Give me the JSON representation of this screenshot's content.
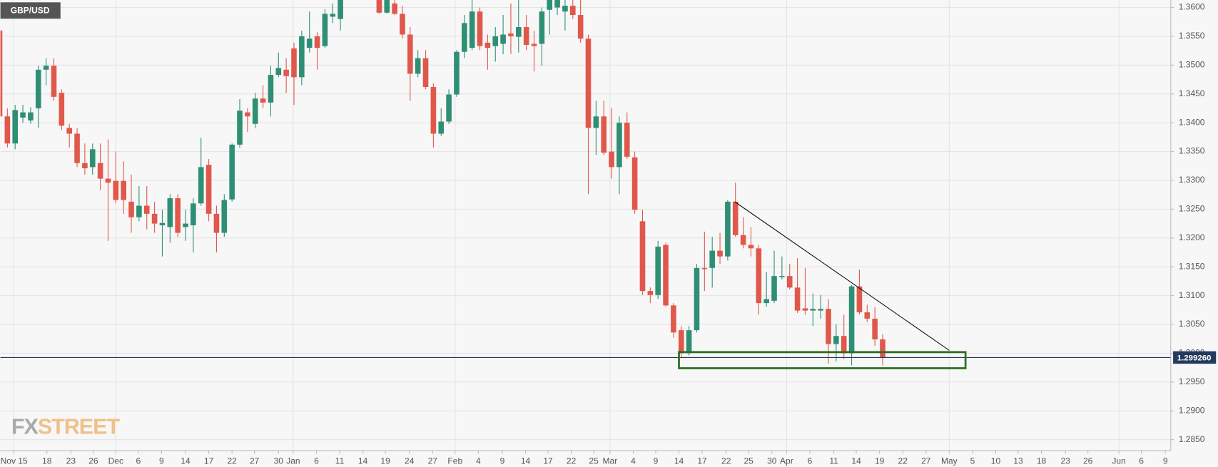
{
  "chart_data": {
    "type": "candlestick",
    "symbol": "GBP/USD",
    "up_color": "#2f8f74",
    "down_color": "#e0584b",
    "grid": true,
    "xlim": [
      0.1,
      151.2
    ],
    "ylim": [
      1.2831,
      1.3613
    ],
    "xticks": [
      {
        "value": 1.8,
        "label": "Nov 15"
      },
      {
        "value": 6.1,
        "label": "18"
      },
      {
        "value": 9.2,
        "label": "23"
      },
      {
        "value": 12.1,
        "label": "26"
      },
      {
        "value": 15.0,
        "label": "Dec"
      },
      {
        "value": 17.9,
        "label": "6"
      },
      {
        "value": 20.9,
        "label": "9"
      },
      {
        "value": 24.0,
        "label": "14"
      },
      {
        "value": 27.0,
        "label": "17"
      },
      {
        "value": 30.0,
        "label": "22"
      },
      {
        "value": 32.9,
        "label": "27"
      },
      {
        "value": 36.0,
        "label": "30"
      },
      {
        "value": 37.9,
        "label": "Jan"
      },
      {
        "value": 40.9,
        "label": "6"
      },
      {
        "value": 43.9,
        "label": "11"
      },
      {
        "value": 46.9,
        "label": "14"
      },
      {
        "value": 49.8,
        "label": "19"
      },
      {
        "value": 52.9,
        "label": "24"
      },
      {
        "value": 55.9,
        "label": "27"
      },
      {
        "value": 58.8,
        "label": "Feb"
      },
      {
        "value": 61.8,
        "label": "4"
      },
      {
        "value": 64.9,
        "label": "9"
      },
      {
        "value": 67.9,
        "label": "14"
      },
      {
        "value": 70.8,
        "label": "17"
      },
      {
        "value": 73.8,
        "label": "22"
      },
      {
        "value": 76.7,
        "label": "25"
      },
      {
        "value": 78.8,
        "label": "Mar"
      },
      {
        "value": 81.8,
        "label": "4"
      },
      {
        "value": 84.7,
        "label": "9"
      },
      {
        "value": 87.7,
        "label": "14"
      },
      {
        "value": 90.7,
        "label": "17"
      },
      {
        "value": 93.8,
        "label": "22"
      },
      {
        "value": 96.7,
        "label": "25"
      },
      {
        "value": 99.7,
        "label": "30"
      },
      {
        "value": 101.6,
        "label": "Apr"
      },
      {
        "value": 104.6,
        "label": "6"
      },
      {
        "value": 107.7,
        "label": "11"
      },
      {
        "value": 110.6,
        "label": "14"
      },
      {
        "value": 113.6,
        "label": "19"
      },
      {
        "value": 116.6,
        "label": "22"
      },
      {
        "value": 119.6,
        "label": "27"
      },
      {
        "value": 122.6,
        "label": "May"
      },
      {
        "value": 125.6,
        "label": "5"
      },
      {
        "value": 128.6,
        "label": "10"
      },
      {
        "value": 131.5,
        "label": "13"
      },
      {
        "value": 134.5,
        "label": "18"
      },
      {
        "value": 137.6,
        "label": "23"
      },
      {
        "value": 140.5,
        "label": "26"
      },
      {
        "value": 144.5,
        "label": "Jun"
      },
      {
        "value": 147.4,
        "label": "6"
      },
      {
        "value": 150.5,
        "label": "9"
      }
    ],
    "yticks": [
      {
        "value": 1.36,
        "label": "1.3600"
      },
      {
        "value": 1.355,
        "label": "1.3550"
      },
      {
        "value": 1.35,
        "label": "1.3500"
      },
      {
        "value": 1.345,
        "label": "1.3450"
      },
      {
        "value": 1.34,
        "label": "1.3400"
      },
      {
        "value": 1.335,
        "label": "1.3350"
      },
      {
        "value": 1.33,
        "label": "1.3300"
      },
      {
        "value": 1.325,
        "label": "1.3250"
      },
      {
        "value": 1.32,
        "label": "1.3200"
      },
      {
        "value": 1.315,
        "label": "1.3150"
      },
      {
        "value": 1.31,
        "label": "1.3100"
      },
      {
        "value": 1.305,
        "label": "1.3050"
      },
      {
        "value": 1.3,
        "label": "1.3000"
      },
      {
        "value": 1.295,
        "label": "1.2950"
      },
      {
        "value": 1.29,
        "label": "1.2900"
      },
      {
        "value": 1.285,
        "label": "1.2850"
      }
    ],
    "price_line": {
      "value": 1.29926,
      "label": "1.299260",
      "color": "#23395d"
    },
    "trendline": {
      "x": [
        94.9,
        122.6
      ],
      "y": [
        1.3263,
        1.3005
      ],
      "color": "#111111"
    },
    "support_zone": {
      "x": [
        87.7,
        124.7
      ],
      "y": [
        1.2974,
        1.3002
      ],
      "color": "#2b6e1f"
    },
    "ohlc": [
      [
        1.356,
        1.3566,
        1.3391,
        1.3411
      ],
      [
        1.3411,
        1.3425,
        1.3357,
        1.3364
      ],
      [
        1.3364,
        1.3431,
        1.3354,
        1.3422
      ],
      [
        1.3409,
        1.3431,
        1.34,
        1.3418
      ],
      [
        1.3404,
        1.3427,
        1.3398,
        1.3418
      ],
      [
        1.3425,
        1.3499,
        1.3391,
        1.3492
      ],
      [
        1.3492,
        1.3512,
        1.3465,
        1.3499
      ],
      [
        1.3499,
        1.3512,
        1.3438,
        1.3445
      ],
      [
        1.3452,
        1.3458,
        1.3387,
        1.3395
      ],
      [
        1.3391,
        1.3398,
        1.3357,
        1.3381
      ],
      [
        1.3381,
        1.3391,
        1.3323,
        1.333
      ],
      [
        1.333,
        1.3364,
        1.331,
        1.3321
      ],
      [
        1.3323,
        1.3364,
        1.331,
        1.3354
      ],
      [
        1.333,
        1.3364,
        1.3283,
        1.3303
      ],
      [
        1.3303,
        1.3371,
        1.3195,
        1.3296
      ],
      [
        1.3299,
        1.335,
        1.326,
        1.3266
      ],
      [
        1.3299,
        1.3333,
        1.3242,
        1.3266
      ],
      [
        1.3263,
        1.331,
        1.3209,
        1.3236
      ],
      [
        1.3236,
        1.329,
        1.3229,
        1.3256
      ],
      [
        1.3256,
        1.329,
        1.3215,
        1.3242
      ],
      [
        1.3242,
        1.3263,
        1.3209,
        1.3225
      ],
      [
        1.3222,
        1.3249,
        1.3168,
        1.3226
      ],
      [
        1.3219,
        1.3276,
        1.3192,
        1.3269
      ],
      [
        1.3269,
        1.3276,
        1.3202,
        1.3209
      ],
      [
        1.3219,
        1.3249,
        1.3195,
        1.3225
      ],
      [
        1.3222,
        1.3269,
        1.3175,
        1.326
      ],
      [
        1.326,
        1.3374,
        1.3256,
        1.3323
      ],
      [
        1.3327,
        1.3337,
        1.3229,
        1.3242
      ],
      [
        1.3242,
        1.3256,
        1.3175,
        1.3209
      ],
      [
        1.3209,
        1.3276,
        1.3202,
        1.3266
      ],
      [
        1.3267,
        1.3364,
        1.3263,
        1.3362
      ],
      [
        1.3362,
        1.3441,
        1.3357,
        1.3421
      ],
      [
        1.3418,
        1.3425,
        1.3384,
        1.3411
      ],
      [
        1.3398,
        1.3452,
        1.3391,
        1.3442
      ],
      [
        1.3442,
        1.3465,
        1.3425,
        1.3435
      ],
      [
        1.3435,
        1.3499,
        1.3411,
        1.3483
      ],
      [
        1.3483,
        1.3522,
        1.3479,
        1.3495
      ],
      [
        1.3492,
        1.3512,
        1.3452,
        1.3481
      ],
      [
        1.3529,
        1.3539,
        1.3431,
        1.3479
      ],
      [
        1.3479,
        1.356,
        1.3465,
        1.355
      ],
      [
        1.353,
        1.3593,
        1.3522,
        1.3546
      ],
      [
        1.355,
        1.3557,
        1.3492,
        1.353
      ],
      [
        1.3533,
        1.3597,
        1.353,
        1.3589
      ],
      [
        1.3584,
        1.3607,
        1.3573,
        1.3589
      ],
      [
        1.358,
        1.3627,
        1.356,
        1.362
      ],
      null,
      null,
      null,
      null,
      [
        1.362,
        1.3627,
        1.3589,
        1.3591
      ],
      [
        1.3591,
        1.362,
        1.3589,
        1.3613
      ],
      [
        1.3607,
        1.3613,
        1.3587,
        1.3589
      ],
      [
        1.3589,
        1.3603,
        1.3546,
        1.3553
      ],
      [
        1.3553,
        1.3566,
        1.3438,
        1.3485
      ],
      [
        1.3485,
        1.3526,
        1.3479,
        1.3512
      ],
      [
        1.3512,
        1.3526,
        1.3458,
        1.3462
      ],
      [
        1.3462,
        1.3468,
        1.3357,
        1.3381
      ],
      [
        1.3381,
        1.3425,
        1.3377,
        1.3402
      ],
      [
        1.3402,
        1.3458,
        1.3398,
        1.3449
      ],
      [
        1.3449,
        1.3526,
        1.3445,
        1.3523
      ],
      [
        1.3523,
        1.3587,
        1.3512,
        1.3573
      ],
      [
        1.353,
        1.3613,
        1.3526,
        1.3593
      ],
      [
        1.3593,
        1.36,
        1.3526,
        1.3533
      ],
      [
        1.3539,
        1.3553,
        1.3492,
        1.353
      ],
      [
        1.3533,
        1.3566,
        1.3506,
        1.355
      ],
      [
        1.3537,
        1.3587,
        1.3519,
        1.3553
      ],
      [
        1.3555,
        1.3607,
        1.3519,
        1.355
      ],
      [
        1.3549,
        1.3613,
        1.3522,
        1.3566
      ],
      [
        1.3566,
        1.3587,
        1.3526,
        1.3535
      ],
      [
        1.3537,
        1.356,
        1.3489,
        1.3533
      ],
      [
        1.3537,
        1.36,
        1.3499,
        1.3593
      ],
      [
        1.3596,
        1.3627,
        1.3553,
        1.362
      ],
      [
        1.36,
        1.362,
        1.3587,
        1.3613
      ],
      [
        1.3593,
        1.3613,
        1.356,
        1.3603
      ],
      [
        1.3603,
        1.3613,
        1.358,
        1.3587
      ],
      [
        1.3587,
        1.3613,
        1.3539,
        1.3546
      ],
      [
        1.3546,
        1.3553,
        1.3276,
        1.3391
      ],
      [
        1.3391,
        1.3438,
        1.3344,
        1.3411
      ],
      [
        1.3411,
        1.3438,
        1.3344,
        1.3348
      ],
      [
        1.335,
        1.3425,
        1.3303,
        1.3323
      ],
      [
        1.3323,
        1.3411,
        1.3276,
        1.34
      ],
      [
        1.34,
        1.3418,
        1.3337,
        1.3341
      ],
      [
        1.334,
        1.335,
        1.3242,
        1.3249
      ],
      [
        1.3229,
        1.3249,
        1.3101,
        1.3108
      ],
      [
        1.3108,
        1.3114,
        1.3087,
        1.3101
      ],
      [
        1.3101,
        1.3195,
        1.3094,
        1.3185
      ],
      [
        1.3188,
        1.3192,
        1.3081,
        1.3083
      ],
      [
        1.3083,
        1.3087,
        1.3027,
        1.3036
      ],
      [
        1.304,
        1.3047,
        1.2993,
        1.3
      ],
      [
        1.3,
        1.3047,
        1.2996,
        1.304
      ],
      [
        1.304,
        1.3155,
        1.3036,
        1.3148
      ],
      [
        1.3148,
        1.3211,
        1.3108,
        1.3146
      ],
      [
        1.3148,
        1.3202,
        1.3114,
        1.3178
      ],
      [
        1.3178,
        1.3209,
        1.3155,
        1.3168
      ],
      [
        1.3168,
        1.3266,
        1.3161,
        1.3263
      ],
      [
        1.3263,
        1.3296,
        1.3202,
        1.3205
      ],
      [
        1.3205,
        1.3236,
        1.3182,
        1.3188
      ],
      [
        1.3188,
        1.3219,
        1.3168,
        1.3182
      ],
      [
        1.3182,
        1.3188,
        1.3067,
        1.3087
      ],
      [
        1.3087,
        1.3141,
        1.3081,
        1.3094
      ],
      [
        1.3091,
        1.3178,
        1.3087,
        1.3134
      ],
      [
        1.3132,
        1.3168,
        1.3128,
        1.3134
      ],
      [
        1.3134,
        1.3155,
        1.3111,
        1.3114
      ],
      [
        1.3114,
        1.3165,
        1.307,
        1.3074
      ],
      [
        1.3078,
        1.3148,
        1.3067,
        1.3074
      ],
      [
        1.3074,
        1.3104,
        1.3047,
        1.3077
      ],
      [
        1.3074,
        1.3101,
        1.306,
        1.3077
      ],
      [
        1.3077,
        1.3094,
        1.2982,
        1.3016
      ],
      [
        1.3016,
        1.305,
        1.2986,
        1.303
      ],
      [
        1.303,
        1.3067,
        1.299,
        1.3
      ],
      [
        1.3,
        1.3118,
        1.2979,
        1.3116
      ],
      [
        1.3116,
        1.3145,
        1.3067,
        1.3071
      ],
      [
        1.3071,
        1.3084,
        1.3054,
        1.306
      ],
      [
        1.306,
        1.308,
        1.3013,
        1.3024
      ],
      [
        1.3024,
        1.3033,
        1.2979,
        1.29926
      ]
    ]
  },
  "logo": {
    "prefix": "FX",
    "suffix": "STREET"
  }
}
